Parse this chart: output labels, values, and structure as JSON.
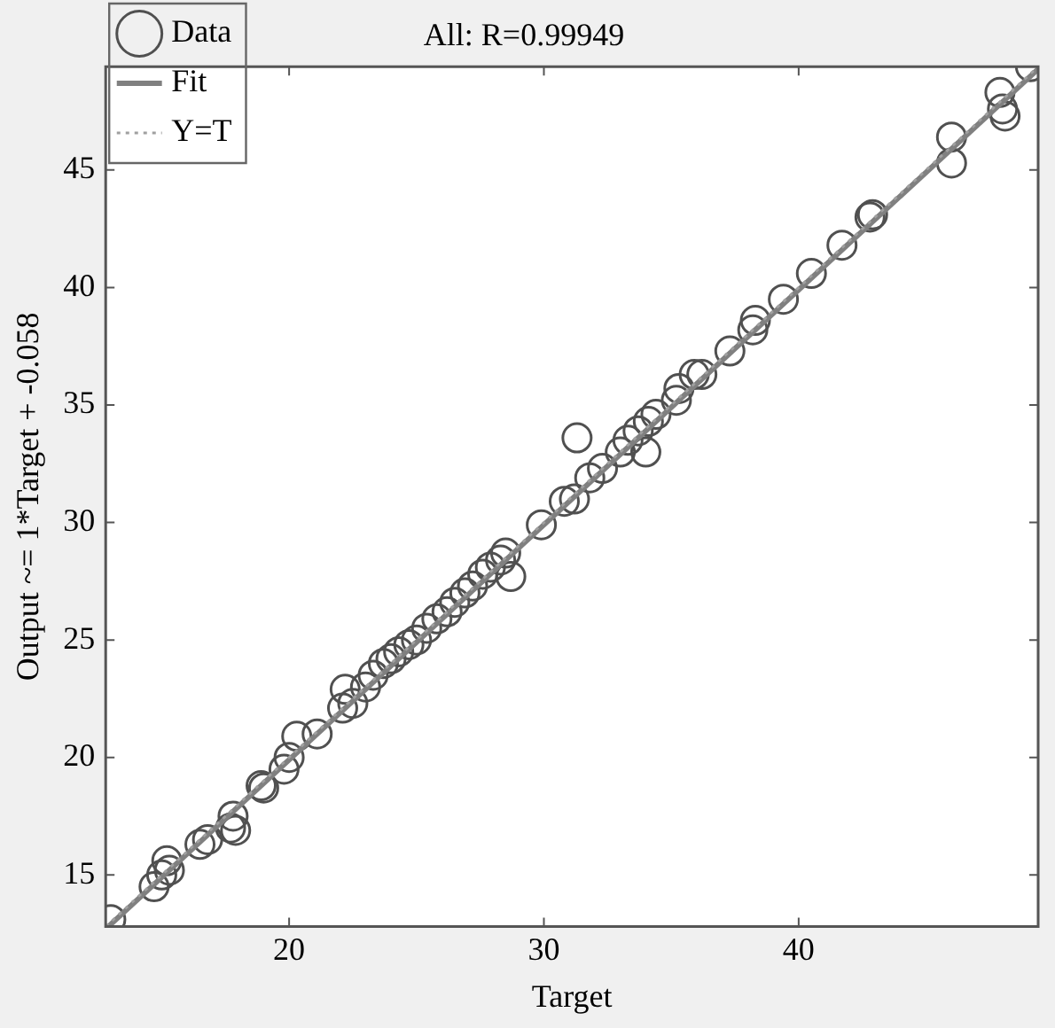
{
  "chart_data": {
    "type": "scatter",
    "title": "All: R=0.99949",
    "xlabel": "Target",
    "ylabel": "Output ~= 1*Target + -0.058",
    "xlim": [
      12.8,
      49.4
    ],
    "ylim": [
      12.8,
      49.4
    ],
    "xticks": [
      20,
      30,
      40
    ],
    "yticks": [
      15,
      20,
      25,
      30,
      35,
      40,
      45
    ],
    "grid": false,
    "legend": "top left",
    "series": [
      {
        "name": "Data",
        "marker": "circle",
        "color": "#505050",
        "x": [
          13.0,
          14.7,
          15.0,
          15.2,
          15.3,
          16.5,
          16.8,
          17.7,
          17.8,
          17.9,
          18.9,
          19.0,
          19.8,
          20.0,
          20.3,
          21.1,
          22.1,
          22.2,
          22.5,
          23.0,
          23.3,
          23.7,
          24.0,
          24.3,
          24.7,
          25.0,
          25.4,
          25.8,
          26.2,
          26.5,
          26.9,
          27.2,
          27.6,
          27.9,
          28.3,
          28.5,
          28.7,
          29.9,
          30.8,
          31.2,
          31.3,
          31.8,
          32.3,
          33.0,
          33.3,
          33.7,
          34.0,
          34.1,
          34.4,
          35.2,
          35.3,
          35.9,
          36.2,
          37.3,
          38.2,
          38.3,
          39.4,
          40.5,
          41.7,
          42.8,
          42.9,
          46.0,
          46.0,
          47.9,
          48.0,
          48.1,
          49.1
        ],
        "values": [
          13.1,
          14.5,
          15.0,
          15.6,
          15.2,
          16.3,
          16.5,
          17.0,
          17.5,
          16.9,
          18.8,
          18.7,
          19.5,
          20.0,
          20.9,
          21.0,
          22.1,
          22.9,
          22.3,
          23.0,
          23.5,
          24.0,
          24.2,
          24.5,
          24.8,
          25.0,
          25.5,
          25.9,
          26.2,
          26.6,
          27.0,
          27.3,
          27.8,
          28.1,
          28.4,
          28.7,
          27.7,
          29.9,
          30.9,
          31.0,
          33.6,
          31.9,
          32.3,
          33.0,
          33.5,
          33.9,
          33.0,
          34.3,
          34.6,
          35.2,
          35.7,
          36.3,
          36.3,
          37.3,
          38.2,
          38.6,
          39.5,
          40.6,
          41.8,
          43.0,
          43.1,
          46.4,
          45.3,
          48.3,
          47.6,
          47.3,
          49.4
        ]
      },
      {
        "name": "Fit",
        "type": "line",
        "marker": "none",
        "line_style": "solid",
        "color": "#808080",
        "x": [
          12.9,
          49.4
        ],
        "values": [
          12.8,
          49.3
        ]
      },
      {
        "name": "Y=T",
        "type": "line",
        "marker": "none",
        "line_style": "dotted",
        "color": "#a0a0a0",
        "x": [
          12.8,
          49.4
        ],
        "values": [
          12.8,
          49.4
        ]
      }
    ]
  }
}
